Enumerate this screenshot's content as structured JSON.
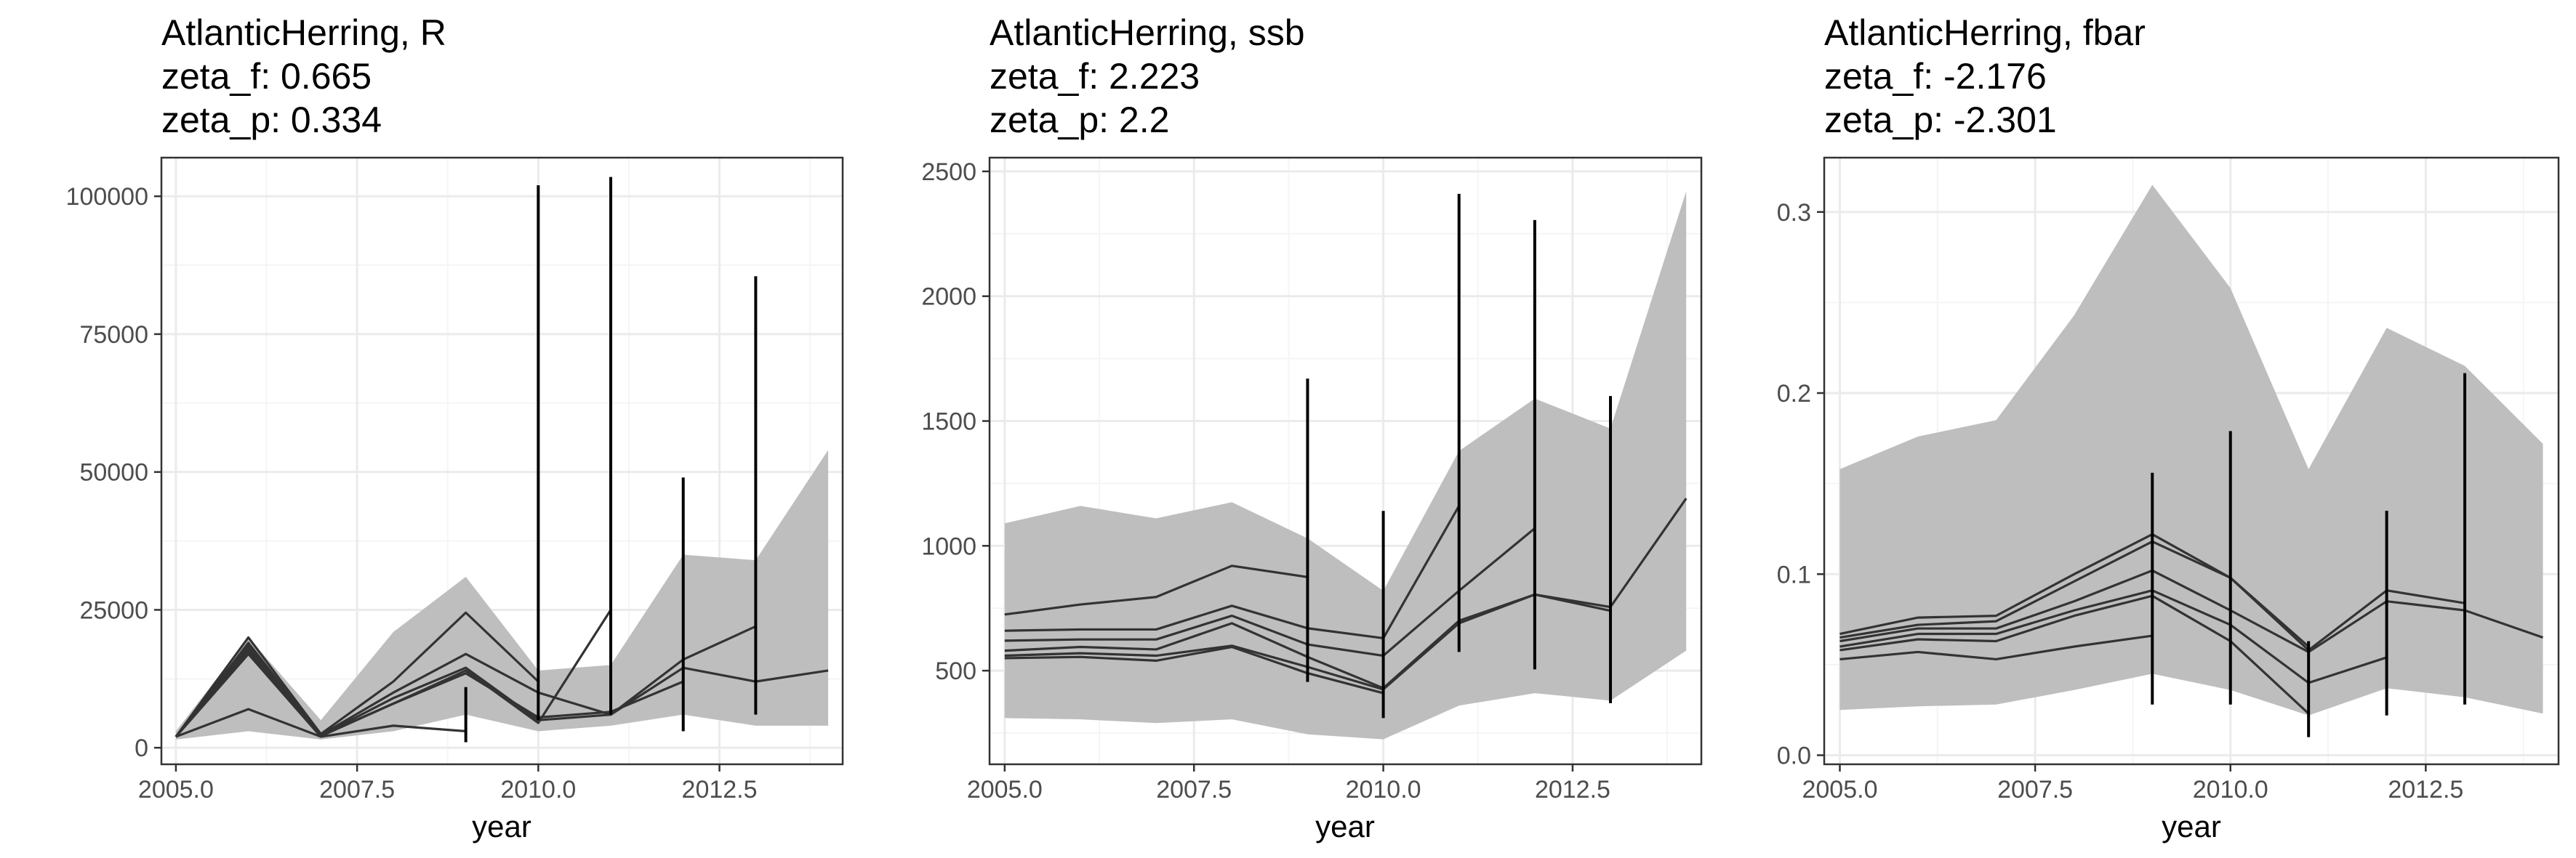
{
  "figure": {
    "background": "#ffffff",
    "ribbon_color": "#bebebe",
    "line_color": "#333333",
    "errorbar_color": "#000000"
  },
  "chart_data": [
    {
      "type": "line",
      "title_lines": [
        "AtlanticHerring, R",
        "zeta_f: 0.665",
        "zeta_p: 0.334"
      ],
      "xlabel": "year",
      "ylabel": "",
      "xlim": [
        2004.8,
        2014.2
      ],
      "ylim": [
        -3000,
        107000
      ],
      "xticks": [
        2005,
        2007.5,
        2010,
        2012.5
      ],
      "xtick_labels": [
        "2005.0",
        "2007.5",
        "2010.0",
        "2012.5"
      ],
      "yticks": [
        0,
        25000,
        50000,
        75000,
        100000
      ],
      "ytick_labels": [
        "0",
        "25000",
        "50000",
        "75000",
        "100000"
      ],
      "grid": true,
      "ribbon": {
        "x": [
          2005,
          2006,
          2007,
          2008,
          2009,
          2010,
          2011,
          2012,
          2013,
          2014
        ],
        "lower": [
          1500,
          3000,
          1500,
          3000,
          6000,
          3000,
          4000,
          6000,
          4000,
          4000
        ],
        "upper": [
          3000,
          20000,
          5000,
          21000,
          31000,
          14000,
          15000,
          35000,
          34000,
          54000
        ]
      },
      "series": [
        {
          "x": [
            2005,
            2006,
            2007,
            2008,
            2009,
            2010
          ],
          "y": [
            2000,
            20000,
            2500,
            12000,
            24500,
            12000
          ]
        },
        {
          "x": [
            2005,
            2006,
            2007,
            2008,
            2009,
            2010,
            2011,
            2012,
            2013
          ],
          "y": [
            2000,
            19000,
            2300,
            10000,
            17000,
            10000,
            6000,
            16000,
            22000
          ]
        },
        {
          "x": [
            2005,
            2006,
            2007,
            2008,
            2009,
            2010,
            2011,
            2012,
            2013,
            2014
          ],
          "y": [
            2000,
            18500,
            2200,
            9000,
            14500,
            5000,
            6000,
            14500,
            12000,
            14000
          ]
        },
        {
          "x": [
            2005,
            2006,
            2007,
            2008,
            2009,
            2010,
            2011,
            2012
          ],
          "y": [
            2000,
            18000,
            2200,
            8000,
            13500,
            5500,
            6500,
            12000
          ]
        },
        {
          "x": [
            2005,
            2006,
            2007,
            2008,
            2009,
            2010,
            2011
          ],
          "y": [
            2000,
            17500,
            2100,
            8000,
            14000,
            4500,
            25000
          ]
        },
        {
          "x": [
            2005,
            2006,
            2007,
            2008,
            2009
          ],
          "y": [
            2000,
            17000,
            2000,
            4000,
            3000
          ]
        },
        {
          "x": [
            2005,
            2006,
            2007
          ],
          "y": [
            2000,
            7000,
            2000
          ]
        }
      ],
      "errorbars": [
        {
          "x": 2009,
          "lower": 1000,
          "upper": 11000
        },
        {
          "x": 2010,
          "lower": 5000,
          "upper": 102000
        },
        {
          "x": 2011,
          "lower": 6000,
          "upper": 103500
        },
        {
          "x": 2012,
          "lower": 3000,
          "upper": 49000
        },
        {
          "x": 2013,
          "lower": 6000,
          "upper": 85500
        }
      ]
    },
    {
      "type": "line",
      "title_lines": [
        "AtlanticHerring, ssb",
        "zeta_f: 2.223",
        "zeta_p: 2.2"
      ],
      "xlabel": "year",
      "ylabel": "",
      "xlim": [
        2004.8,
        2014.2
      ],
      "ylim": [
        125,
        2555
      ],
      "xticks": [
        2005,
        2007.5,
        2010,
        2012.5
      ],
      "xtick_labels": [
        "2005.0",
        "2007.5",
        "2010.0",
        "2012.5"
      ],
      "yticks": [
        500,
        1000,
        1500,
        2000,
        2500
      ],
      "ytick_labels": [
        "500",
        "1000",
        "1500",
        "2000",
        "2500"
      ],
      "grid": true,
      "ribbon": {
        "x": [
          2005,
          2006,
          2007,
          2008,
          2009,
          2010,
          2011,
          2012,
          2013,
          2014
        ],
        "lower": [
          310,
          305,
          290,
          305,
          245,
          225,
          360,
          410,
          380,
          580
        ],
        "upper": [
          1090,
          1160,
          1110,
          1175,
          1030,
          820,
          1380,
          1590,
          1470,
          2420
        ]
      },
      "series": [
        {
          "x": [
            2005,
            2006,
            2007,
            2008,
            2009
          ],
          "y": [
            725,
            765,
            795,
            920,
            875
          ]
        },
        {
          "x": [
            2005,
            2006,
            2007,
            2008,
            2009,
            2010,
            2011
          ],
          "y": [
            660,
            665,
            665,
            760,
            670,
            630,
            1160
          ]
        },
        {
          "x": [
            2005,
            2006,
            2007,
            2008,
            2009,
            2010,
            2011,
            2012
          ],
          "y": [
            620,
            625,
            625,
            720,
            605,
            560,
            820,
            1070
          ]
        },
        {
          "x": [
            2005,
            2006,
            2007,
            2008,
            2009,
            2010,
            2011,
            2012,
            2013,
            2014
          ],
          "y": [
            580,
            595,
            585,
            690,
            555,
            430,
            700,
            805,
            755,
            1190
          ]
        },
        {
          "x": [
            2005,
            2006,
            2007,
            2008,
            2009,
            2010,
            2011,
            2012,
            2013
          ],
          "y": [
            560,
            570,
            560,
            600,
            515,
            425,
            690,
            805,
            740
          ]
        },
        {
          "x": [
            2005,
            2006,
            2007,
            2008,
            2009,
            2010
          ],
          "y": [
            550,
            555,
            540,
            595,
            490,
            410
          ]
        }
      ],
      "errorbars": [
        {
          "x": 2009,
          "lower": 455,
          "upper": 1670
        },
        {
          "x": 2010,
          "lower": 310,
          "upper": 1140
        },
        {
          "x": 2011,
          "lower": 575,
          "upper": 2410
        },
        {
          "x": 2012,
          "lower": 505,
          "upper": 2305
        },
        {
          "x": 2013,
          "lower": 370,
          "upper": 1600
        }
      ]
    },
    {
      "type": "line",
      "title_lines": [
        "AtlanticHerring, fbar",
        "zeta_f: -2.176",
        "zeta_p: -2.301"
      ],
      "xlabel": "year",
      "ylabel": "",
      "xlim": [
        2004.8,
        2014.2
      ],
      "ylim": [
        -0.005,
        0.33
      ],
      "xticks": [
        2005,
        2007.5,
        2010,
        2012.5
      ],
      "xtick_labels": [
        "2005.0",
        "2007.5",
        "2010.0",
        "2012.5"
      ],
      "yticks": [
        0.0,
        0.1,
        0.2,
        0.3
      ],
      "ytick_labels": [
        "0.0",
        "0.1",
        "0.2",
        "0.3"
      ],
      "grid": true,
      "ribbon": {
        "x": [
          2005,
          2006,
          2007,
          2008,
          2009,
          2010,
          2011,
          2012,
          2013,
          2014
        ],
        "lower": [
          0.025,
          0.027,
          0.028,
          0.036,
          0.045,
          0.036,
          0.022,
          0.037,
          0.032,
          0.023
        ],
        "upper": [
          0.158,
          0.176,
          0.185,
          0.243,
          0.315,
          0.258,
          0.158,
          0.236,
          0.215,
          0.172
        ]
      },
      "series": [
        {
          "x": [
            2005,
            2006,
            2007,
            2008,
            2009,
            2010,
            2011
          ],
          "y": [
            0.067,
            0.076,
            0.077,
            0.1,
            0.122,
            0.098,
            0.06
          ]
        },
        {
          "x": [
            2005,
            2006,
            2007,
            2008,
            2009,
            2010,
            2011,
            2012,
            2013
          ],
          "y": [
            0.065,
            0.072,
            0.074,
            0.096,
            0.118,
            0.098,
            0.058,
            0.091,
            0.084
          ]
        },
        {
          "x": [
            2005,
            2006,
            2007,
            2008,
            2009,
            2010,
            2011,
            2012,
            2013,
            2014
          ],
          "y": [
            0.063,
            0.07,
            0.07,
            0.085,
            0.102,
            0.08,
            0.057,
            0.085,
            0.08,
            0.065
          ]
        },
        {
          "x": [
            2005,
            2006,
            2007,
            2008,
            2009,
            2010,
            2011,
            2012
          ],
          "y": [
            0.06,
            0.067,
            0.067,
            0.08,
            0.091,
            0.072,
            0.04,
            0.054
          ]
        },
        {
          "x": [
            2005,
            2006,
            2007,
            2008,
            2009,
            2010,
            2011
          ],
          "y": [
            0.058,
            0.064,
            0.063,
            0.077,
            0.088,
            0.063,
            0.023
          ]
        },
        {
          "x": [
            2005,
            2006,
            2007,
            2008,
            2009
          ],
          "y": [
            0.053,
            0.057,
            0.053,
            0.06,
            0.066
          ]
        }
      ],
      "errorbars": [
        {
          "x": 2009,
          "lower": 0.028,
          "upper": 0.156
        },
        {
          "x": 2010,
          "lower": 0.028,
          "upper": 0.179
        },
        {
          "x": 2011,
          "lower": 0.01,
          "upper": 0.063
        },
        {
          "x": 2012,
          "lower": 0.022,
          "upper": 0.135
        },
        {
          "x": 2013,
          "lower": 0.028,
          "upper": 0.211
        }
      ]
    }
  ]
}
